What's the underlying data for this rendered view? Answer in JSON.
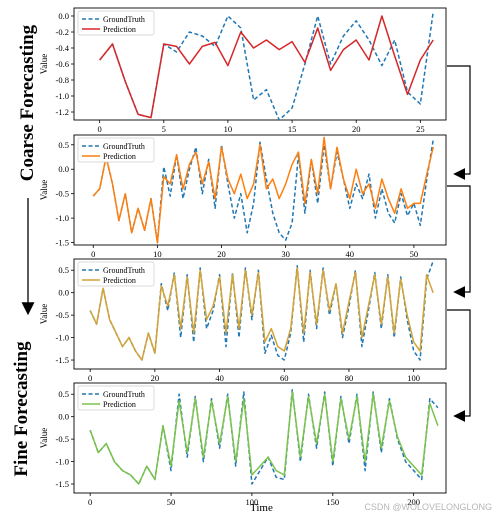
{
  "figure": {
    "side_labels": {
      "coarse": "Coarse Forecasting",
      "fine": "Fine Forecasting"
    },
    "xlabel": "Time",
    "watermark": "CSDN @WOLOVELONGLONG"
  },
  "chart_data": [
    {
      "type": "line",
      "ylabel": "Value",
      "xlim": [
        -2,
        27
      ],
      "ylim": [
        -1.3,
        0.1
      ],
      "xticks": [
        0,
        5,
        10,
        15,
        20,
        25
      ],
      "yticks": [
        0.0,
        -0.2,
        -0.4,
        -0.6,
        -0.8,
        -1.0,
        -1.2
      ],
      "legend_loc": "top-left",
      "series": [
        {
          "name": "GroundTruth",
          "color": "#1f77b4",
          "dash": true,
          "x": [
            0,
            1,
            2,
            3,
            4,
            5,
            6,
            7,
            8,
            9,
            10,
            11,
            12,
            13,
            14,
            15,
            16,
            17,
            18,
            19,
            20,
            21,
            22,
            23,
            24,
            25,
            26
          ],
          "y": [
            -0.55,
            -0.35,
            -0.82,
            -1.23,
            -1.27,
            -0.35,
            -0.45,
            -0.2,
            -0.25,
            -0.38,
            0.0,
            -0.15,
            -1.05,
            -0.92,
            -1.3,
            -1.15,
            -0.6,
            0.0,
            -0.6,
            -0.25,
            -0.06,
            -0.3,
            -0.62,
            -0.3,
            -0.95,
            -1.1,
            0.05
          ]
        },
        {
          "name": "Prediction",
          "color": "#d62728",
          "dash": false,
          "x": [
            0,
            1,
            2,
            3,
            4,
            5,
            6,
            7,
            8,
            9,
            10,
            11,
            12,
            13,
            14,
            15,
            16,
            17,
            18,
            19,
            20,
            21,
            22,
            23,
            24,
            25,
            26
          ],
          "y": [
            -0.55,
            -0.35,
            -0.82,
            -1.23,
            -1.27,
            -0.35,
            -0.38,
            -0.6,
            -0.38,
            -0.33,
            -0.62,
            -0.2,
            -0.4,
            -0.3,
            -0.42,
            -0.32,
            -0.58,
            -0.15,
            -0.68,
            -0.42,
            -0.3,
            -0.55,
            0.0,
            -0.5,
            -0.98,
            -0.55,
            -0.3
          ]
        }
      ]
    },
    {
      "type": "line",
      "ylabel": "Value",
      "xlim": [
        -3,
        55
      ],
      "ylim": [
        -1.55,
        0.7
      ],
      "xticks": [
        0,
        10,
        20,
        30,
        40,
        50
      ],
      "yticks": [
        0.5,
        0.0,
        -0.5,
        -1.0,
        -1.5
      ],
      "legend_loc": "top-left",
      "series": [
        {
          "name": "GroundTruth",
          "color": "#1f77b4",
          "dash": true,
          "x": [
            0,
            1,
            2,
            3,
            4,
            5,
            6,
            7,
            8,
            9,
            10,
            11,
            12,
            13,
            14,
            15,
            16,
            17,
            18,
            19,
            20,
            21,
            22,
            23,
            24,
            25,
            26,
            27,
            28,
            29,
            30,
            31,
            32,
            33,
            34,
            35,
            36,
            37,
            38,
            39,
            40,
            41,
            42,
            43,
            44,
            45,
            46,
            47,
            48,
            49,
            50,
            51,
            52,
            53
          ],
          "y": [
            -0.55,
            -0.4,
            0.25,
            -0.3,
            -1.05,
            -0.5,
            -1.3,
            -0.8,
            -1.25,
            -0.6,
            -1.5,
            0.05,
            -0.55,
            0.3,
            -0.6,
            0.0,
            0.45,
            -0.5,
            0.2,
            -0.8,
            0.5,
            -0.3,
            -1.0,
            -0.5,
            -1.3,
            -0.7,
            0.55,
            -0.2,
            -0.9,
            -1.3,
            -1.45,
            -1.1,
            0.3,
            -0.9,
            0.2,
            -0.7,
            0.5,
            -0.4,
            0.35,
            -0.2,
            -0.8,
            -0.3,
            -0.6,
            -0.1,
            -1.0,
            -0.4,
            -0.9,
            -1.1,
            -0.5,
            -0.95,
            -0.7,
            -1.15,
            -0.2,
            0.6
          ]
        },
        {
          "name": "Prediction",
          "color": "#ff7f0e",
          "dash": false,
          "x": [
            0,
            1,
            2,
            3,
            4,
            5,
            6,
            7,
            8,
            9,
            10,
            11,
            12,
            13,
            14,
            15,
            16,
            17,
            18,
            19,
            20,
            21,
            22,
            23,
            24,
            25,
            26,
            27,
            28,
            29,
            30,
            31,
            32,
            33,
            34,
            35,
            36,
            37,
            38,
            39,
            40,
            41,
            42,
            43,
            44,
            45,
            46,
            47,
            48,
            49,
            50,
            51,
            52,
            53
          ],
          "y": [
            -0.55,
            -0.4,
            0.25,
            -0.3,
            -1.05,
            -0.5,
            -1.3,
            -0.8,
            -1.25,
            -0.6,
            -1.5,
            -0.15,
            -0.3,
            0.3,
            -0.4,
            0.1,
            0.35,
            -0.3,
            0.15,
            -0.6,
            0.45,
            -0.2,
            -0.5,
            -0.1,
            -0.6,
            -0.3,
            0.5,
            -0.4,
            -0.2,
            -0.6,
            -0.3,
            0.1,
            0.35,
            -0.7,
            0.2,
            -0.5,
            0.65,
            -0.4,
            0.45,
            -0.2,
            -0.6,
            0.0,
            -0.5,
            -0.3,
            -0.8,
            -0.2,
            -0.6,
            -0.9,
            -0.4,
            -0.8,
            -0.7,
            -0.7,
            -0.1,
            0.45
          ]
        }
      ]
    },
    {
      "type": "line",
      "ylabel": "Value",
      "xlim": [
        -5,
        110
      ],
      "ylim": [
        -1.7,
        0.75
      ],
      "xticks": [
        0,
        20,
        40,
        60,
        80,
        100
      ],
      "yticks": [
        0.5,
        0.0,
        -0.5,
        -1.0,
        -1.5
      ],
      "legend_loc": "top-left",
      "series": [
        {
          "name": "GroundTruth",
          "color": "#1f77b4",
          "dash": true,
          "x": [
            0,
            2,
            4,
            6,
            8,
            10,
            12,
            14,
            16,
            18,
            20,
            22,
            24,
            26,
            28,
            30,
            32,
            34,
            36,
            38,
            40,
            42,
            44,
            46,
            48,
            50,
            52,
            54,
            56,
            58,
            60,
            62,
            64,
            66,
            68,
            70,
            72,
            74,
            76,
            78,
            80,
            82,
            84,
            86,
            88,
            90,
            92,
            94,
            96,
            98,
            100,
            102,
            104,
            106
          ],
          "y": [
            -0.4,
            -0.7,
            0.1,
            -0.6,
            -0.9,
            -1.2,
            -1.0,
            -1.3,
            -1.5,
            -0.9,
            -1.35,
            0.2,
            -0.4,
            0.45,
            -1.0,
            0.4,
            -1.1,
            0.55,
            -0.8,
            -0.4,
            0.4,
            -1.2,
            0.45,
            -1.0,
            0.55,
            -0.6,
            0.5,
            -1.35,
            -0.95,
            -1.4,
            -1.5,
            -0.9,
            0.6,
            -1.1,
            0.5,
            -0.8,
            0.55,
            -0.5,
            0.2,
            -1.0,
            -0.3,
            0.5,
            -1.2,
            -0.4,
            0.45,
            -0.8,
            0.4,
            -1.0,
            0.35,
            -0.6,
            -1.3,
            -1.5,
            0.3,
            0.7
          ]
        },
        {
          "name": "Prediction",
          "color": "#d4a336",
          "dash": false,
          "x": [
            0,
            2,
            4,
            6,
            8,
            10,
            12,
            14,
            16,
            18,
            20,
            22,
            24,
            26,
            28,
            30,
            32,
            34,
            36,
            38,
            40,
            42,
            44,
            46,
            48,
            50,
            52,
            54,
            56,
            58,
            60,
            62,
            64,
            66,
            68,
            70,
            72,
            74,
            76,
            78,
            80,
            82,
            84,
            86,
            88,
            90,
            92,
            94,
            96,
            98,
            100,
            102,
            104,
            106
          ],
          "y": [
            -0.4,
            -0.7,
            0.1,
            -0.6,
            -0.9,
            -1.2,
            -1.0,
            -1.3,
            -1.5,
            -0.9,
            -1.35,
            0.15,
            -0.3,
            0.4,
            -0.8,
            0.35,
            -0.9,
            0.5,
            -0.6,
            -0.3,
            0.35,
            -0.9,
            0.4,
            -0.8,
            0.5,
            -0.5,
            0.45,
            -1.1,
            -0.8,
            -1.2,
            -1.3,
            -0.8,
            0.55,
            -0.9,
            0.45,
            -0.7,
            0.5,
            -0.4,
            0.2,
            -0.9,
            -0.2,
            0.45,
            -1.0,
            -0.3,
            0.4,
            -0.7,
            0.35,
            -0.9,
            0.3,
            -0.5,
            -1.1,
            -1.3,
            0.4,
            0.0
          ]
        }
      ]
    },
    {
      "type": "line",
      "ylabel": "Value",
      "xlim": [
        -10,
        220
      ],
      "ylim": [
        -1.7,
        0.75
      ],
      "xticks": [
        0,
        50,
        100,
        150,
        200
      ],
      "yticks": [
        0.5,
        0.0,
        -0.5,
        -1.0,
        -1.5
      ],
      "legend_loc": "top-left",
      "series": [
        {
          "name": "GroundTruth",
          "color": "#1f77b4",
          "dash": true,
          "x": [
            0,
            5,
            10,
            15,
            20,
            25,
            30,
            35,
            40,
            45,
            50,
            55,
            60,
            65,
            70,
            75,
            80,
            85,
            90,
            95,
            100,
            105,
            110,
            115,
            120,
            125,
            130,
            135,
            140,
            145,
            150,
            155,
            160,
            165,
            170,
            175,
            180,
            185,
            190,
            195,
            200,
            205,
            210,
            215
          ],
          "y": [
            -0.3,
            -0.8,
            -0.6,
            -1.0,
            -1.2,
            -1.3,
            -1.5,
            -1.1,
            -1.4,
            -0.2,
            -1.2,
            0.5,
            -0.9,
            0.45,
            -1.0,
            0.4,
            -0.7,
            0.5,
            -1.1,
            0.55,
            -1.5,
            -1.2,
            -0.9,
            -1.35,
            -1.4,
            0.6,
            -1.0,
            0.5,
            -0.7,
            0.55,
            -1.1,
            0.45,
            -0.6,
            0.5,
            -1.2,
            0.55,
            -0.8,
            0.4,
            -0.5,
            -1.0,
            -1.2,
            -1.4,
            0.4,
            0.2
          ]
        },
        {
          "name": "Prediction",
          "color": "#7cc34b",
          "dash": false,
          "x": [
            0,
            5,
            10,
            15,
            20,
            25,
            30,
            35,
            40,
            45,
            50,
            55,
            60,
            65,
            70,
            75,
            80,
            85,
            90,
            95,
            100,
            105,
            110,
            115,
            120,
            125,
            130,
            135,
            140,
            145,
            150,
            155,
            160,
            165,
            170,
            175,
            180,
            185,
            190,
            195,
            200,
            205,
            210,
            215
          ],
          "y": [
            -0.3,
            -0.8,
            -0.6,
            -1.0,
            -1.2,
            -1.3,
            -1.5,
            -1.1,
            -1.4,
            -0.2,
            -1.1,
            0.35,
            -0.8,
            0.4,
            -0.9,
            0.35,
            -0.6,
            0.45,
            -1.0,
            0.4,
            -1.3,
            -1.1,
            -0.9,
            -1.2,
            -1.3,
            0.55,
            -0.9,
            0.45,
            -0.6,
            0.5,
            -1.0,
            0.4,
            -0.5,
            0.45,
            -1.0,
            0.5,
            -0.7,
            0.35,
            -0.45,
            -0.9,
            -1.1,
            -1.3,
            0.3,
            -0.2
          ]
        }
      ]
    }
  ]
}
